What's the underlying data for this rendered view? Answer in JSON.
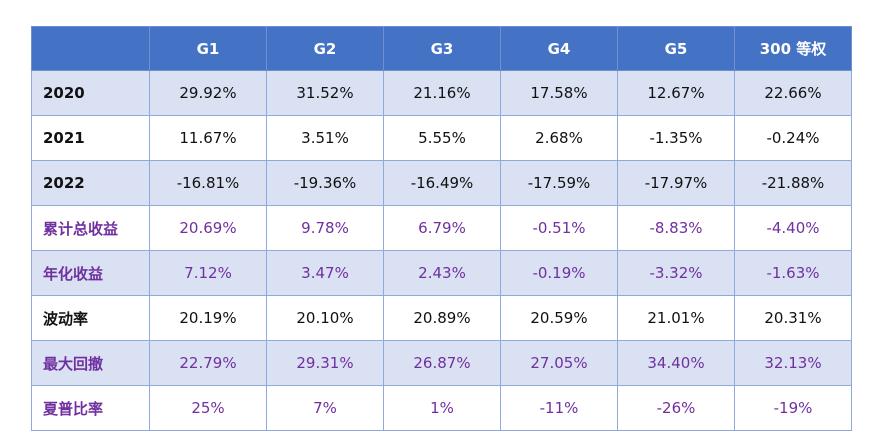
{
  "table": {
    "header": [
      "",
      "G1",
      "G2",
      "G3",
      "G4",
      "G5",
      "300 等权"
    ],
    "rows": [
      {
        "label": "2020",
        "values": [
          "29.92%",
          "31.52%",
          "21.16%",
          "17.58%",
          "12.67%",
          "22.66%"
        ]
      },
      {
        "label": "2021",
        "values": [
          "11.67%",
          "3.51%",
          "5.55%",
          "2.68%",
          "-1.35%",
          "-0.24%"
        ]
      },
      {
        "label": "2022",
        "values": [
          "-16.81%",
          "-19.36%",
          "-16.49%",
          "-17.59%",
          "-17.97%",
          "-21.88%"
        ]
      },
      {
        "label": "累计总收益",
        "values": [
          "20.69%",
          "9.78%",
          "6.79%",
          "-0.51%",
          "-8.83%",
          "-4.40%"
        ]
      },
      {
        "label": "年化收益",
        "values": [
          "7.12%",
          "3.47%",
          "2.43%",
          "-0.19%",
          "-3.32%",
          "-1.63%"
        ]
      },
      {
        "label": "波动率",
        "values": [
          "20.19%",
          "20.10%",
          "20.89%",
          "20.59%",
          "21.01%",
          "20.31%"
        ]
      },
      {
        "label": "最大回撤",
        "values": [
          "22.79%",
          "29.31%",
          "26.87%",
          "27.05%",
          "34.40%",
          "32.13%"
        ]
      },
      {
        "label": "夏普比率",
        "values": [
          "25%",
          "7%",
          "1%",
          "-11%",
          "-26%",
          "-19%"
        ]
      }
    ]
  },
  "colors": {
    "header_bg": "#4472c4",
    "band_bg": "#d9e1f2",
    "border": "#8eaadb",
    "purple_text": "#7030a0"
  }
}
